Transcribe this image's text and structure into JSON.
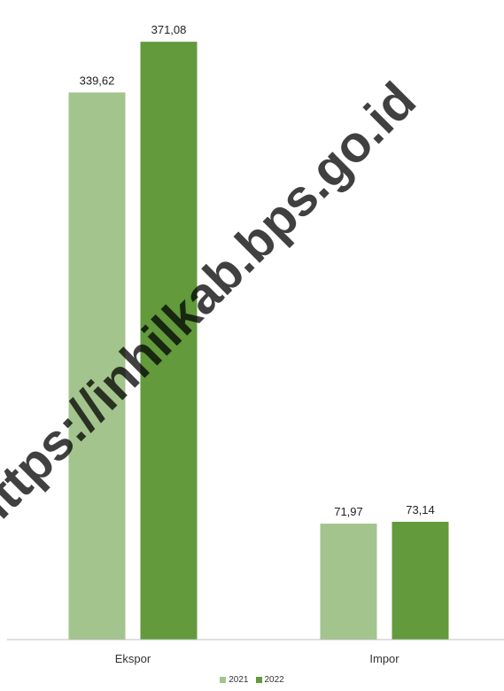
{
  "watermark_text": "https://inhilkab.bps.go.id",
  "chart_data": {
    "type": "bar",
    "categories": [
      "Ekspor",
      "Impor"
    ],
    "series": [
      {
        "name": "2021",
        "values": [
          339.62,
          71.97
        ],
        "labels": [
          "339,62",
          "71,97"
        ],
        "color": "#a3c48d"
      },
      {
        "name": "2022",
        "values": [
          371.08,
          73.14
        ],
        "labels": [
          "371,08",
          "73,14"
        ],
        "color": "#629a3c"
      }
    ],
    "ylim": [
      0,
      397
    ],
    "grid": false,
    "legend": "bottom"
  }
}
